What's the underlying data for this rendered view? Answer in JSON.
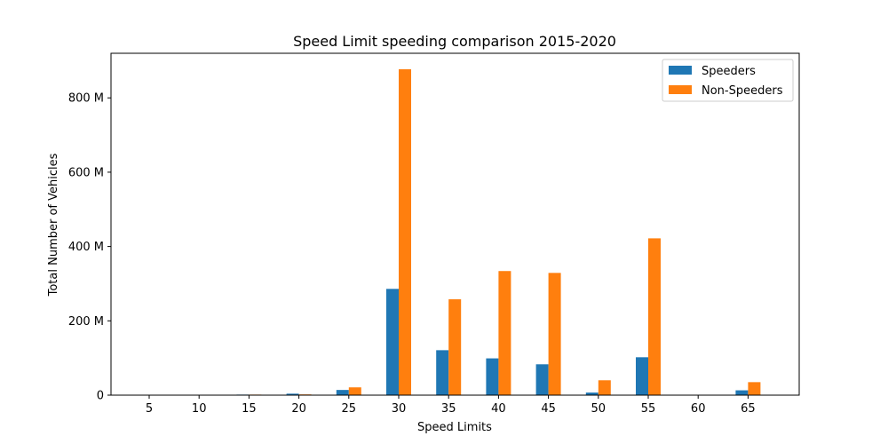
{
  "chart_data": {
    "type": "bar",
    "title": "Speed Limit speeding comparison 2015-2020",
    "xlabel": "Speed Limits",
    "ylabel": "Total Number of Vehicles",
    "categories": [
      "5",
      "10",
      "15",
      "20",
      "25",
      "30",
      "35",
      "40",
      "45",
      "50",
      "55",
      "60",
      "65"
    ],
    "series": [
      {
        "name": "Speeders",
        "color": "#1f77b4",
        "values": [
          0.1,
          0.1,
          1.5,
          4,
          14,
          286,
          121,
          99,
          83,
          7,
          102,
          0.3,
          13
        ]
      },
      {
        "name": "Non-Speeders",
        "color": "#ff7f0e",
        "values": [
          0.1,
          0.1,
          1.5,
          2,
          21,
          877,
          258,
          334,
          329,
          40,
          422,
          0.3,
          35
        ]
      }
    ],
    "ylim": [
      0,
      920
    ],
    "yticks": [
      0,
      200,
      400,
      600,
      800
    ],
    "ytick_labels": [
      "0",
      "200 M",
      "400 M",
      "600 M",
      "800 M"
    ],
    "grid": false,
    "legend_position": "top-right"
  }
}
